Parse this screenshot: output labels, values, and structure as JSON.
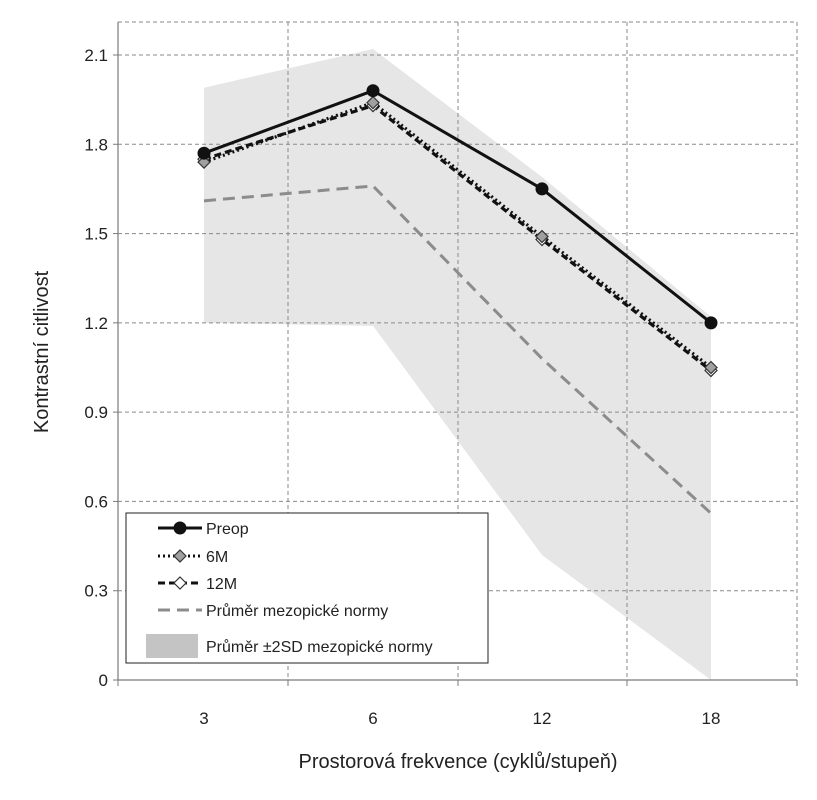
{
  "chart_data": {
    "type": "line",
    "categories": [
      "3",
      "6",
      "12",
      "18"
    ],
    "xlabel": "Prostorová frekvence  (cyklů/stupeň)",
    "ylabel": "Kontrastní citlivost",
    "ylim": [
      0,
      2.1
    ],
    "yticks": [
      "0",
      "0.3",
      "0.6",
      "0.9",
      "1.2",
      "1.5",
      "1.8",
      "2.1"
    ],
    "grid": true,
    "legend_position": "bottom-left",
    "series": [
      {
        "name": "Preop",
        "values": [
          1.77,
          1.98,
          1.65,
          1.2
        ],
        "color": "#111111",
        "style": "solid",
        "marker": "circle"
      },
      {
        "name": "6M",
        "values": [
          1.74,
          1.94,
          1.49,
          1.05
        ],
        "color": "#111111",
        "style": "dotted",
        "marker": "diamond-gray"
      },
      {
        "name": "12M",
        "values": [
          1.75,
          1.93,
          1.48,
          1.04
        ],
        "color": "#111111",
        "style": "dashed",
        "marker": "diamond-white"
      },
      {
        "name": "Průměr mezopické normy",
        "values": [
          1.61,
          1.66,
          1.08,
          0.56
        ],
        "color": "#8c8c8c",
        "style": "dashed",
        "marker": "none"
      }
    ],
    "band": {
      "name": "Průměr ±2SD mezopické normy",
      "color": "#e6e6e6",
      "upper": [
        1.99,
        2.12,
        1.69,
        1.22
      ],
      "lower": [
        1.2,
        1.19,
        0.42,
        0.0
      ]
    }
  }
}
